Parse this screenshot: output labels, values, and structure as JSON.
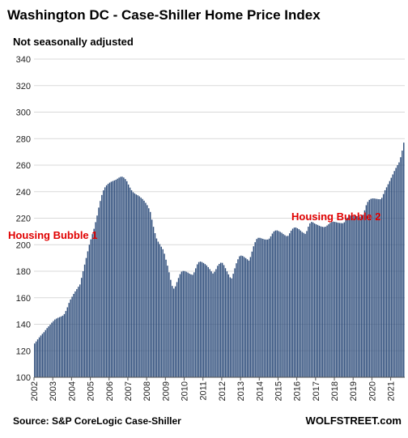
{
  "chart_data": {
    "type": "bar",
    "title": "Washington DC - Case-Shiller Home Price Index",
    "subtitle": "Not seasonally adjusted",
    "xlabel": "",
    "ylabel": "",
    "ylim": [
      100,
      340
    ],
    "yticks": [
      100,
      120,
      140,
      160,
      180,
      200,
      220,
      240,
      260,
      280,
      300,
      320,
      340
    ],
    "ytick_labels": [
      "100",
      "120",
      "140",
      "160",
      "180",
      "200",
      "220",
      "240",
      "260",
      "280",
      "300",
      "320",
      "340"
    ],
    "x_start": "2002-01",
    "frequency": "monthly",
    "x_tick_labels": [
      "2002",
      "2003",
      "2004",
      "2005",
      "2006",
      "2007",
      "2008",
      "2009",
      "2010",
      "2011",
      "2012",
      "2013",
      "2014",
      "2015",
      "2016",
      "2017",
      "2018",
      "2019",
      "2020",
      "2021"
    ],
    "grid": "horizontal",
    "values": [
      125.5,
      127.0,
      128.6,
      130.1,
      131.5,
      132.8,
      134.0,
      135.6,
      137.1,
      138.4,
      139.7,
      141.2,
      142.4,
      143.6,
      144.3,
      144.9,
      145.4,
      145.9,
      146.5,
      147.7,
      150.0,
      152.8,
      156.1,
      158.7,
      160.8,
      162.9,
      164.8,
      166.5,
      168.3,
      170.0,
      175.0,
      180.0,
      185.0,
      190.0,
      195.0,
      200.0,
      204.0,
      208.0,
      212.0,
      217.0,
      222.0,
      228.0,
      233.0,
      237.5,
      241.0,
      243.3,
      244.8,
      245.9,
      246.8,
      247.5,
      248.0,
      248.5,
      249.0,
      249.8,
      250.6,
      251.2,
      251.3,
      250.7,
      249.5,
      247.9,
      245.4,
      243.1,
      241.1,
      239.6,
      238.7,
      237.9,
      237.3,
      236.5,
      235.5,
      234.5,
      233.2,
      231.6,
      229.8,
      227.5,
      224.7,
      218.9,
      213.5,
      208.7,
      204.7,
      202.3,
      200.5,
      198.5,
      196.6,
      193.2,
      188.7,
      184.2,
      179.2,
      173.5,
      168.9,
      166.9,
      168.6,
      171.8,
      174.9,
      177.8,
      179.7,
      180.2,
      180.1,
      179.6,
      179.0,
      178.2,
      177.6,
      177.3,
      179.2,
      182.2,
      185.2,
      186.9,
      187.3,
      186.9,
      186.2,
      185.4,
      184.4,
      183.1,
      181.6,
      179.9,
      178.3,
      179.6,
      181.6,
      184.1,
      185.5,
      186.4,
      186.3,
      184.6,
      182.3,
      179.9,
      177.6,
      175.4,
      174.6,
      178.1,
      182.2,
      186.0,
      189.0,
      191.3,
      191.8,
      191.5,
      190.7,
      189.9,
      189.0,
      188.0,
      190.7,
      194.8,
      198.8,
      201.9,
      204.3,
      205.2,
      205.2,
      204.8,
      204.4,
      204.0,
      203.9,
      203.9,
      204.6,
      206.3,
      208.4,
      210.0,
      210.7,
      210.8,
      210.3,
      209.7,
      209.0,
      208.0,
      207.2,
      206.5,
      206.7,
      208.6,
      210.6,
      212.1,
      212.9,
      213.0,
      212.4,
      211.7,
      210.7,
      209.6,
      208.9,
      208.2,
      210.3,
      213.6,
      216.1,
      217.2,
      216.8,
      216.0,
      215.4,
      214.9,
      214.3,
      213.8,
      213.5,
      213.3,
      213.6,
      214.5,
      215.5,
      216.5,
      217.2,
      217.4,
      217.2,
      216.9,
      216.6,
      216.4,
      216.3,
      216.2,
      216.9,
      218.6,
      220.4,
      221.6,
      222.0,
      222.0,
      221.8,
      221.7,
      221.5,
      221.4,
      221.3,
      221.4,
      222.6,
      225.9,
      229.8,
      232.3,
      233.8,
      234.6,
      234.9,
      234.9,
      234.7,
      234.5,
      234.3,
      234.3,
      235.4,
      238.2,
      241.1,
      243.3,
      245.6,
      248.0,
      250.5,
      253.0,
      255.6,
      257.9,
      260.0,
      262.1,
      266.0,
      271.0,
      277.0
    ],
    "annotations": [
      {
        "text": "Housing Bubble 1",
        "color": "#e00000"
      },
      {
        "text": "Housing Bubble 2",
        "color": "#e00000"
      }
    ],
    "bar_color": "#2e4d7b",
    "source": "Source: S&P CoreLogic Case-Shiller",
    "watermark": "WOLFSTREET.com"
  }
}
